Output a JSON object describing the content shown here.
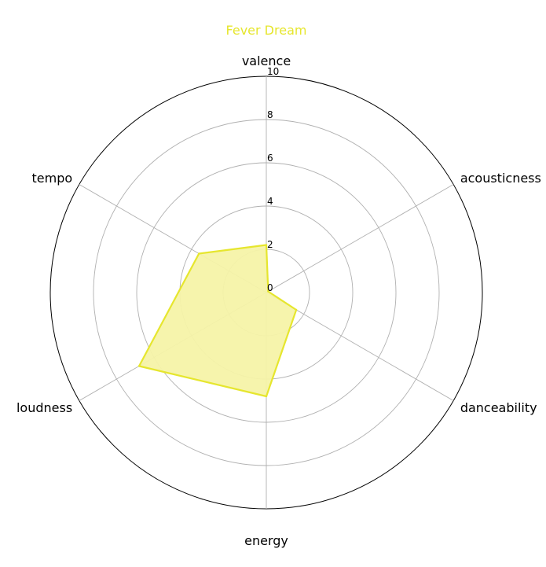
{
  "chart_data": {
    "type": "radar",
    "title": "Fever Dream",
    "title_color": "#e6e62e",
    "series_color": "#e6e62e",
    "fill_color": "#f5f3a8",
    "grid_color": "#b0b0b0",
    "axes": [
      "valence",
      "acousticness",
      "danceability",
      "energy",
      "loudness",
      "tempo"
    ],
    "series": [
      {
        "values": [
          2.2,
          0.1,
          1.6,
          4.8,
          6.8,
          3.6
        ]
      }
    ],
    "rlim": [
      0,
      10
    ],
    "rticks": [
      0,
      2,
      4,
      6,
      8,
      10
    ],
    "rtick_labels": [
      "0",
      "2",
      "4",
      "6",
      "8",
      "10"
    ],
    "grid": true
  }
}
